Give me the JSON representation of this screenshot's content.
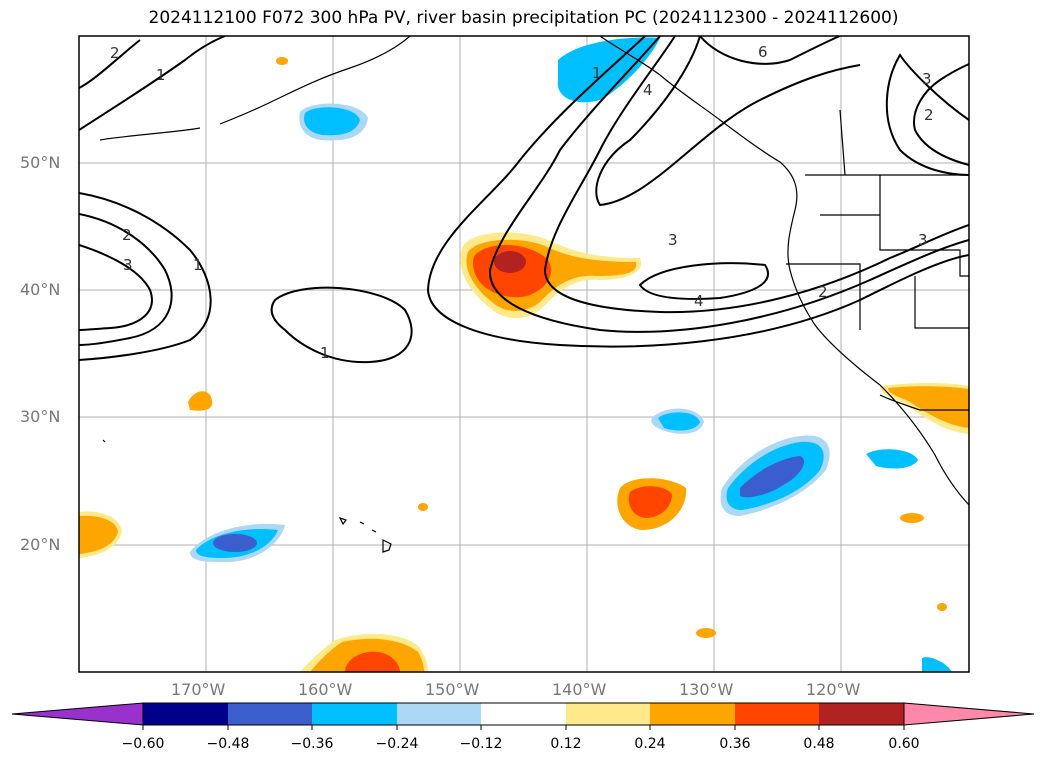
{
  "title": "2024112100 F072 300 hPa PV, river basin precipitation PC (2024112300 - 2024112600)",
  "lon_labels": [
    "170°W",
    "160°W",
    "150°W",
    "140°W",
    "130°W",
    "120°W"
  ],
  "lat_labels": [
    "50°N",
    "40°N",
    "30°N",
    "20°N"
  ],
  "pv_contour_labels": [
    "1",
    "2",
    "3",
    "4",
    "6"
  ],
  "colorbar": {
    "tick_labels": [
      "−0.60",
      "−0.48",
      "−0.36",
      "−0.24",
      "−0.12",
      "0.12",
      "0.24",
      "0.36",
      "0.48",
      "0.60"
    ],
    "colors": {
      "under": "#9932cc",
      "b1": "#00008b",
      "b2": "#3a5fcd",
      "b3": "#00bfff",
      "b4": "#add8f5",
      "mid": "#ffffff",
      "p1": "#ffe98a",
      "p2": "#ffa500",
      "p3": "#ff4500",
      "p4": "#b22222",
      "over": "#ff88aa"
    }
  },
  "colors": {
    "grid": "#b0b0b0",
    "contour": "#000000",
    "coast": "#000000",
    "label_gray": "#777777"
  }
}
